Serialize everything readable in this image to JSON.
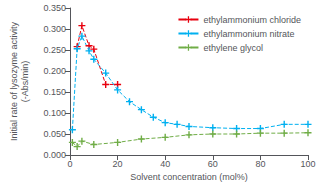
{
  "chart_data": {
    "type": "line",
    "xlabel": "Solvent concentration (mol%)",
    "ylabel": "Initial rate of lysozyme activity\n(-Abs/min)",
    "xlim": [
      0,
      100
    ],
    "xticks": [
      0,
      20,
      40,
      60,
      80,
      100
    ],
    "ylim": [
      0,
      0.35
    ],
    "yticks": [
      {
        "value": 0,
        "label": "0.000"
      },
      {
        "value": 0.05,
        "label": "0.050"
      },
      {
        "value": 0.1,
        "label": "0.100"
      },
      {
        "value": 0.15,
        "label": "0.150"
      },
      {
        "value": 0.2,
        "label": "0.200"
      },
      {
        "value": 0.25,
        "label": "0.250"
      },
      {
        "value": 0.3,
        "label": "0.300"
      },
      {
        "value": 0.35,
        "label": "0.350"
      }
    ],
    "grid": false,
    "legend": "upper right",
    "marker": "plus",
    "line_style": "dashed",
    "series": [
      {
        "name": "ethylammonium chloride",
        "color": "#e8000e",
        "x": [
          3,
          5,
          8,
          10,
          15,
          20
        ],
        "values": [
          0.258,
          0.308,
          0.26,
          0.252,
          0.168,
          0.168
        ]
      },
      {
        "name": "ethylammonium nitrate",
        "color": "#00b0f0",
        "x": [
          1,
          3,
          5,
          8,
          10,
          15,
          20,
          25,
          30,
          35,
          40,
          45,
          50,
          60,
          70,
          80,
          90,
          100
        ],
        "values": [
          0.06,
          0.253,
          0.283,
          0.248,
          0.228,
          0.195,
          0.155,
          0.127,
          0.108,
          0.09,
          0.077,
          0.073,
          0.068,
          0.065,
          0.063,
          0.063,
          0.073,
          0.073
        ]
      },
      {
        "name": "ethylene glycol",
        "color": "#70ad47",
        "x": [
          1,
          3,
          5,
          10,
          20,
          30,
          40,
          50,
          60,
          70,
          80,
          90,
          100
        ],
        "values": [
          0.03,
          0.02,
          0.033,
          0.025,
          0.03,
          0.038,
          0.042,
          0.048,
          0.05,
          0.05,
          0.052,
          0.052,
          0.053
        ]
      }
    ]
  }
}
